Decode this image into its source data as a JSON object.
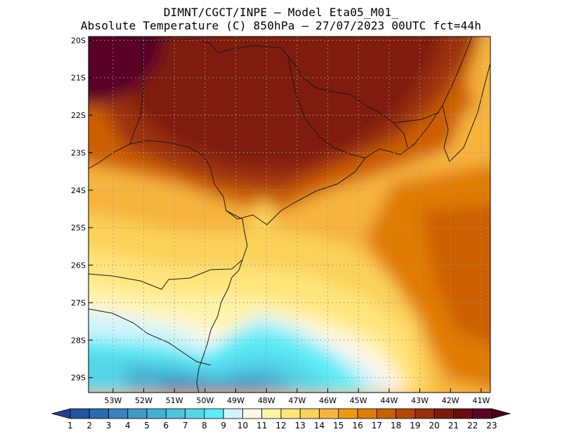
{
  "title": {
    "line1": "DIMNT/CGCT/INPE –  Model Eta05_M01_",
    "line2": "Absolute Temperature (C) 850hPa –  27/07/2023 00UTC fct=44h"
  },
  "chart_data": {
    "type": "heatmap",
    "title": "Absolute Temperature (C) 850hPa",
    "model": "Eta05_M01_",
    "run": "27/07/2023 00UTC",
    "forecast_hour": "fct=44h",
    "source": "DIMNT/CGCT/INPE",
    "lat_range": [
      -29.4,
      -19.9
    ],
    "lon_range": [
      -53.8,
      -40.7
    ],
    "lat_ticks": [
      -20,
      -21,
      -22,
      -23,
      -24,
      -25,
      -26,
      -27,
      -28,
      -29
    ],
    "lat_tick_labels": [
      "20S",
      "21S",
      "22S",
      "23S",
      "24S",
      "25S",
      "26S",
      "27S",
      "28S",
      "29S"
    ],
    "lon_ticks": [
      -53,
      -52,
      -51,
      -50,
      -49,
      -48,
      -47,
      -46,
      -45,
      -44,
      -43,
      -42,
      -41
    ],
    "lon_tick_labels": [
      "53W",
      "52W",
      "51W",
      "50W",
      "49W",
      "48W",
      "47W",
      "46W",
      "45W",
      "44W",
      "43W",
      "42W",
      "41W"
    ],
    "colorbar": {
      "levels": [
        "1",
        "2",
        "3",
        "4",
        "5",
        "6",
        "7",
        "8",
        "9",
        "10",
        "11",
        "12",
        "13",
        "14",
        "15",
        "16",
        "17",
        "18",
        "19",
        "20",
        "21",
        "22",
        "23"
      ],
      "colors": [
        "#1f3f91",
        "#2354a0",
        "#2a6aaf",
        "#3a82bd",
        "#3f9bc8",
        "#44b0d2",
        "#4cc4dc",
        "#52d6e8",
        "#5cecf6",
        "#cff4fb",
        "#fff6e6",
        "#fff3a8",
        "#ffe47a",
        "#fbd159",
        "#f6b43c",
        "#f0990f",
        "#e07c06",
        "#cc5f05",
        "#b54707",
        "#9b3009",
        "#7f1a0b",
        "#6a0c0c",
        "#5a0427",
        "#4a0418"
      ]
    }
  }
}
